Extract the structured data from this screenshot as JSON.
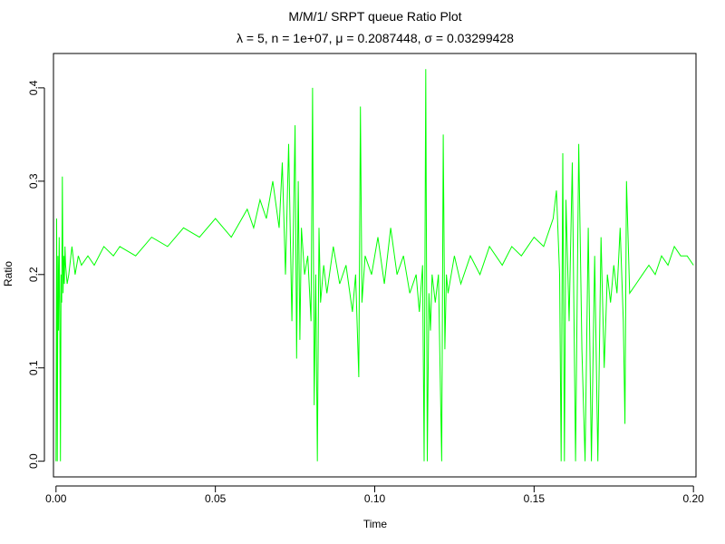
{
  "chart_data": {
    "type": "line",
    "title": "M/M/1/ SRPT queue Ratio Plot",
    "subtitle": {
      "lambda_symbol": "λ",
      "lambda_eq": " = 5,  n = 1e+07, ",
      "mu_symbol": "μ",
      "mu_eq": " = 0.2087448, ",
      "sigma_symbol": "σ",
      "sigma_eq": " = 0.03299428"
    },
    "xlabel": "Time",
    "ylabel": "Ratio",
    "xlim": [
      -0.0008,
      0.2008
    ],
    "ylim": [
      -0.0168,
      0.4368
    ],
    "x_ticks": [
      0.0,
      0.05,
      0.1,
      0.15,
      0.2
    ],
    "x_tick_labels": [
      "0.00",
      "0.05",
      "0.10",
      "0.15",
      "0.20"
    ],
    "y_ticks": [
      0.0,
      0.1,
      0.2,
      0.3,
      0.4
    ],
    "y_tick_labels": [
      "0.0",
      "0.1",
      "0.2",
      "0.3",
      "0.4"
    ],
    "line_color": "#00ff00",
    "grid": false,
    "legend": "none",
    "series": [
      {
        "x": [
          0.0,
          0.0002,
          0.0004,
          0.0006,
          0.0008,
          0.001,
          0.0012,
          0.0014,
          0.0016,
          0.0018,
          0.002,
          0.0022,
          0.0024,
          0.0026,
          0.0028,
          0.003,
          0.0035,
          0.004,
          0.005,
          0.006,
          0.007,
          0.008,
          0.01,
          0.012,
          0.015,
          0.018,
          0.02,
          0.025,
          0.03,
          0.035,
          0.04,
          0.045,
          0.05,
          0.055,
          0.06,
          0.062,
          0.064,
          0.066,
          0.068,
          0.07,
          0.071,
          0.072,
          0.073,
          0.074,
          0.075,
          0.0755,
          0.076,
          0.0765,
          0.077,
          0.078,
          0.079,
          0.08,
          0.0805,
          0.081,
          0.0815,
          0.082,
          0.0825,
          0.083,
          0.084,
          0.085,
          0.087,
          0.089,
          0.091,
          0.093,
          0.094,
          0.095,
          0.0955,
          0.096,
          0.097,
          0.099,
          0.101,
          0.103,
          0.105,
          0.107,
          0.109,
          0.111,
          0.113,
          0.114,
          0.115,
          0.1155,
          0.116,
          0.1165,
          0.117,
          0.1175,
          0.118,
          0.119,
          0.12,
          0.121,
          0.1215,
          0.122,
          0.1225,
          0.123,
          0.125,
          0.127,
          0.13,
          0.133,
          0.136,
          0.14,
          0.143,
          0.146,
          0.15,
          0.153,
          0.155,
          0.156,
          0.157,
          0.158,
          0.1585,
          0.159,
          0.1595,
          0.16,
          0.161,
          0.162,
          0.163,
          0.164,
          0.165,
          0.166,
          0.167,
          0.168,
          0.169,
          0.17,
          0.171,
          0.172,
          0.173,
          0.174,
          0.175,
          0.176,
          0.177,
          0.178,
          0.1785,
          0.179,
          0.18,
          0.182,
          0.184,
          0.186,
          0.188,
          0.19,
          0.192,
          0.194,
          0.196,
          0.198,
          0.2
        ],
        "y": [
          0.0,
          0.26,
          0.0,
          0.22,
          0.14,
          0.24,
          0.16,
          0.0,
          0.2,
          0.17,
          0.305,
          0.18,
          0.22,
          0.19,
          0.23,
          0.21,
          0.19,
          0.2,
          0.23,
          0.2,
          0.22,
          0.21,
          0.22,
          0.21,
          0.23,
          0.22,
          0.23,
          0.22,
          0.24,
          0.23,
          0.25,
          0.24,
          0.26,
          0.24,
          0.27,
          0.25,
          0.28,
          0.26,
          0.3,
          0.25,
          0.32,
          0.2,
          0.34,
          0.15,
          0.36,
          0.11,
          0.3,
          0.13,
          0.25,
          0.2,
          0.22,
          0.15,
          0.4,
          0.06,
          0.2,
          0.0,
          0.25,
          0.17,
          0.21,
          0.18,
          0.23,
          0.19,
          0.21,
          0.16,
          0.2,
          0.09,
          0.38,
          0.17,
          0.22,
          0.2,
          0.24,
          0.19,
          0.25,
          0.2,
          0.22,
          0.18,
          0.2,
          0.16,
          0.21,
          0.0,
          0.42,
          0.0,
          0.18,
          0.14,
          0.2,
          0.17,
          0.2,
          0.0,
          0.35,
          0.12,
          0.2,
          0.18,
          0.22,
          0.19,
          0.22,
          0.2,
          0.23,
          0.21,
          0.23,
          0.22,
          0.24,
          0.23,
          0.25,
          0.26,
          0.29,
          0.2,
          0.0,
          0.33,
          0.0,
          0.28,
          0.15,
          0.32,
          0.0,
          0.34,
          0.12,
          0.0,
          0.25,
          0.0,
          0.22,
          0.0,
          0.24,
          0.1,
          0.2,
          0.17,
          0.21,
          0.18,
          0.25,
          0.15,
          0.04,
          0.3,
          0.18,
          0.19,
          0.2,
          0.21,
          0.2,
          0.22,
          0.21,
          0.23,
          0.22,
          0.22,
          0.21
        ]
      }
    ]
  }
}
